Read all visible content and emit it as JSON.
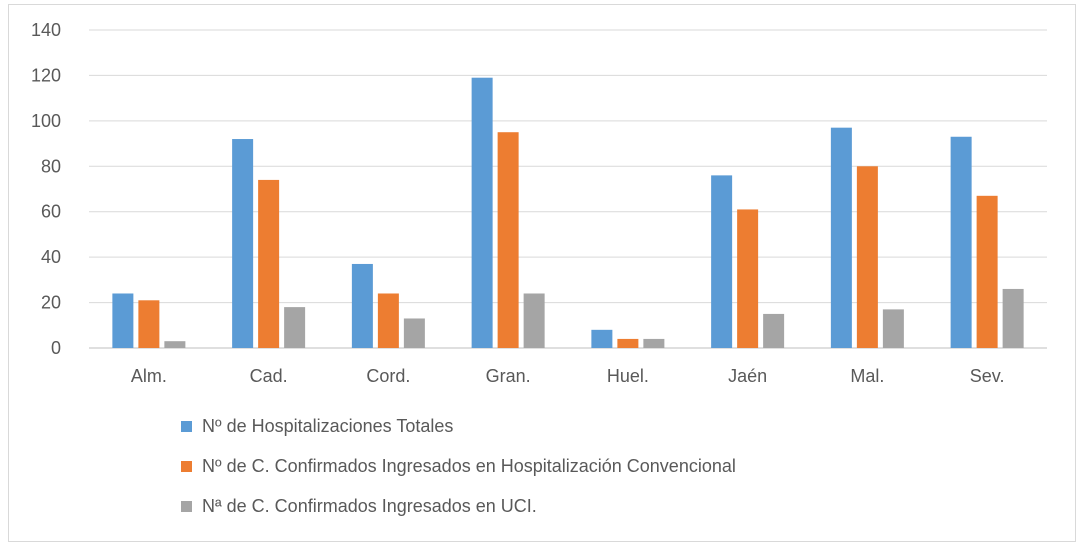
{
  "chart_data": {
    "type": "bar",
    "title": "",
    "xlabel": "",
    "ylabel": "",
    "categories": [
      "Alm.",
      "Cad.",
      "Cord.",
      "Gran.",
      "Huel.",
      "Jaén",
      "Mal.",
      "Sev."
    ],
    "ylim": [
      0,
      140
    ],
    "yticks": [
      0,
      20,
      40,
      60,
      80,
      100,
      120,
      140
    ],
    "grid": true,
    "legend_position": "bottom",
    "series": [
      {
        "name": "Nº de Hospitalizaciones Totales",
        "color": "#5b9bd5",
        "values": [
          24,
          92,
          37,
          119,
          8,
          76,
          97,
          93
        ]
      },
      {
        "name": "Nº de C. Confirmados Ingresados en Hospitalización Convencional",
        "color": "#ed7d31",
        "values": [
          21,
          74,
          24,
          95,
          4,
          61,
          80,
          67
        ]
      },
      {
        "name": "Nª de C. Confirmados Ingresados en UCI.",
        "color": "#a5a5a5",
        "values": [
          3,
          18,
          13,
          24,
          4,
          15,
          17,
          26
        ]
      }
    ]
  }
}
